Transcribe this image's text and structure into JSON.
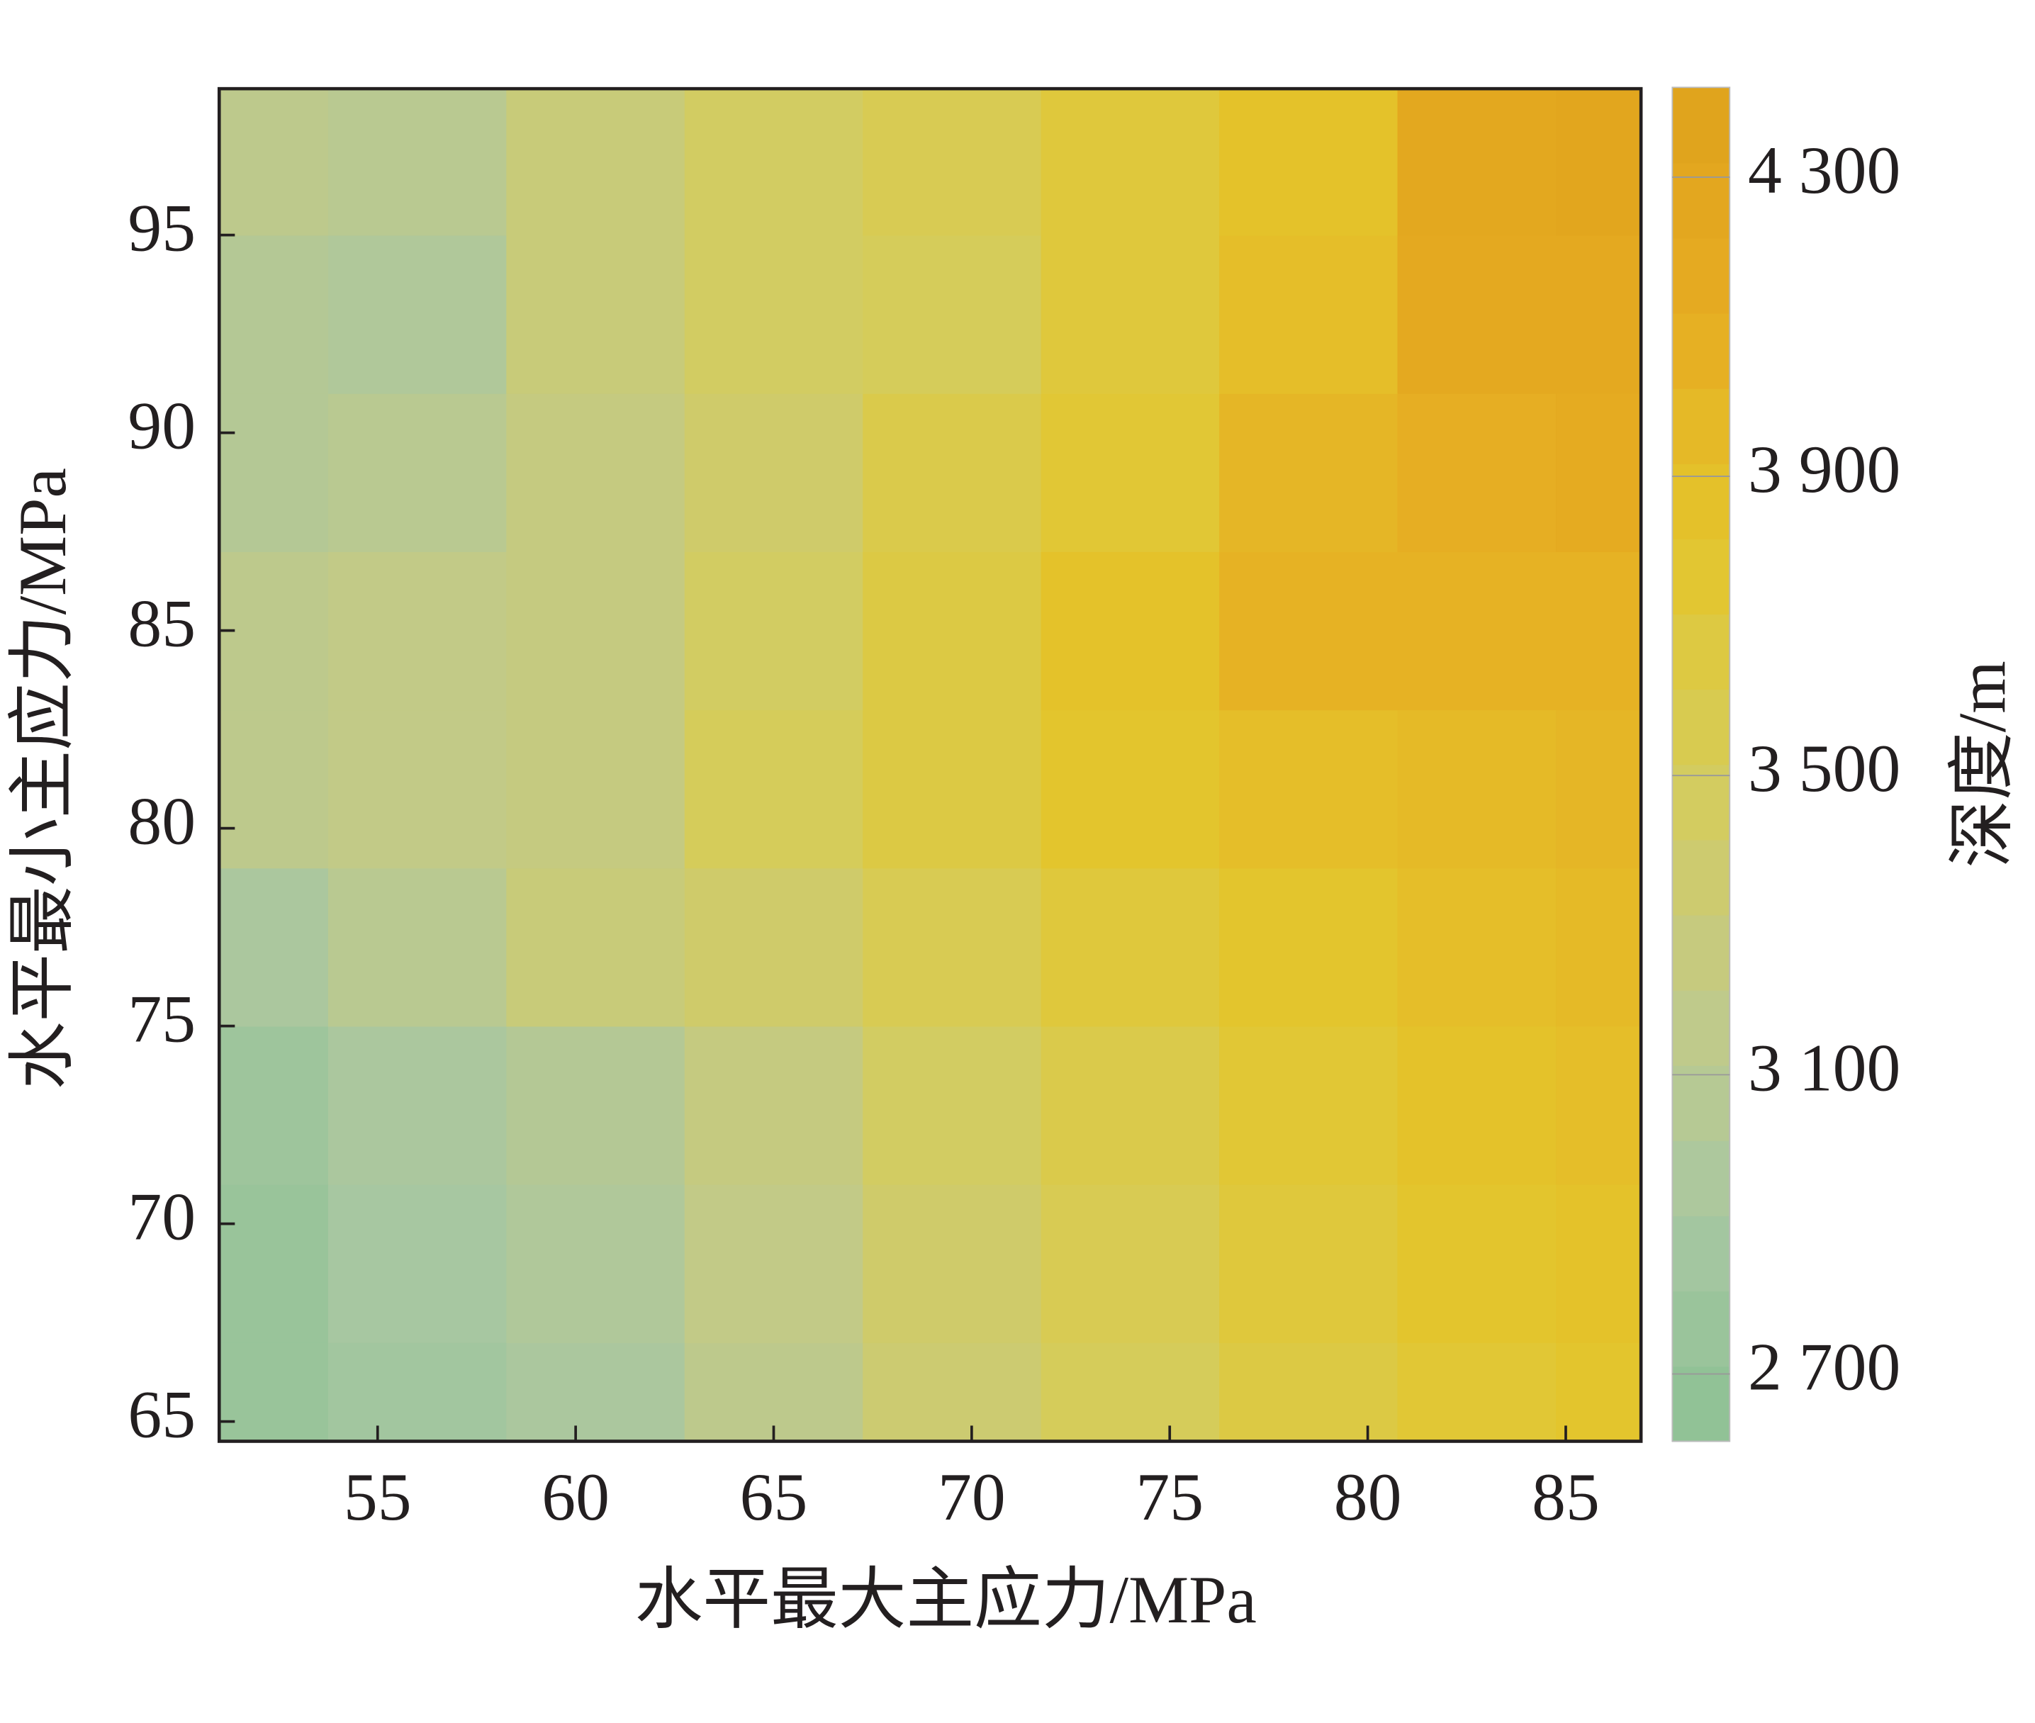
{
  "chart_data": {
    "type": "contour",
    "xlabel": "水平最大主应力/MPa",
    "ylabel": "水平最小主应力/MPa",
    "colorbar_label": "深度/m",
    "xlim": [
      51,
      86.9
    ],
    "ylim": [
      64.5,
      98.7
    ],
    "xticks": [
      55,
      60,
      65,
      70,
      75,
      80,
      85
    ],
    "yticks": [
      65,
      70,
      75,
      80,
      85,
      90,
      95
    ],
    "clim": [
      2610,
      4420
    ],
    "cticks": [
      {
        "value": 2700,
        "label": "2 700"
      },
      {
        "value": 3100,
        "label": "3 100"
      },
      {
        "value": 3500,
        "label": "3 500"
      },
      {
        "value": 3900,
        "label": "3 900"
      },
      {
        "value": 4300,
        "label": "4 300"
      }
    ],
    "colormap": [
      "#8cc193",
      "#a8c7a2",
      "#c3ca86",
      "#d6cc58",
      "#e4c52b",
      "#e6ac22",
      "#dfa21c"
    ],
    "x": [
      51.5,
      56,
      60.5,
      65,
      69.5,
      74,
      78.5,
      83,
      86.5
    ],
    "y": [
      65,
      69,
      73,
      77,
      81,
      85,
      89,
      93,
      97
    ],
    "z": [
      [
        2750,
        2850,
        2950,
        3150,
        3350,
        3500,
        3650,
        3750,
        3800
      ],
      [
        2750,
        2900,
        3000,
        3200,
        3400,
        3550,
        3700,
        3800,
        3850
      ],
      [
        2800,
        2950,
        3050,
        3250,
        3450,
        3600,
        3750,
        3850,
        3900
      ],
      [
        2950,
        3100,
        3300,
        3400,
        3550,
        3700,
        3800,
        3900,
        3950
      ],
      [
        3150,
        3200,
        3250,
        3500,
        3650,
        3800,
        3900,
        3950,
        4000
      ],
      [
        3150,
        3200,
        3250,
        3450,
        3650,
        3850,
        4050,
        4050,
        4050
      ],
      [
        3050,
        3100,
        3250,
        3400,
        3600,
        3750,
        4000,
        4100,
        4150
      ],
      [
        3050,
        3000,
        3300,
        3450,
        3500,
        3700,
        3900,
        4200,
        4200
      ],
      [
        3150,
        3100,
        3300,
        3450,
        3550,
        3700,
        3850,
        4250,
        4300
      ]
    ]
  }
}
